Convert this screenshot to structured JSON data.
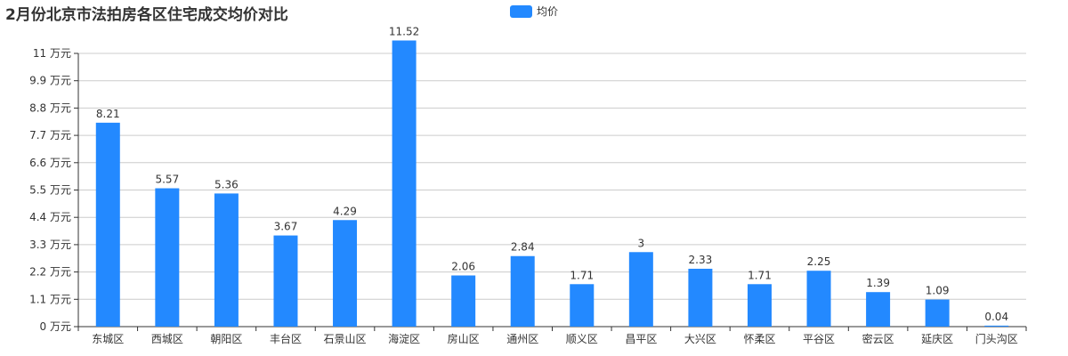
{
  "chart_data": {
    "type": "bar",
    "title": "2月份北京市法拍房各区住宅成交均价对比",
    "legend": {
      "position": "top-center",
      "entries": [
        "均价"
      ]
    },
    "series": [
      {
        "name": "均价",
        "color": "#2389ff",
        "values": [
          8.21,
          5.57,
          5.36,
          3.67,
          4.29,
          11.52,
          2.06,
          2.84,
          1.71,
          3,
          2.33,
          1.71,
          2.25,
          1.39,
          1.09,
          0.04
        ],
        "value_labels": [
          "8.21",
          "5.57",
          "5.36",
          "3.67",
          "4.29",
          "11.52",
          "2.06",
          "2.84",
          "1.71",
          "3",
          "2.33",
          "1.71",
          "2.25",
          "1.39",
          "1.09",
          "0.04"
        ]
      }
    ],
    "categories": [
      "东城区",
      "西城区",
      "朝阳区",
      "丰台区",
      "石景山区",
      "海淀区",
      "房山区",
      "通州区",
      "顺义区",
      "昌平区",
      "大兴区",
      "怀柔区",
      "平谷区",
      "密云区",
      "延庆区",
      "门头沟区"
    ],
    "ylim": [
      0,
      11
    ],
    "yticks": [
      0,
      1.1,
      2.2,
      3.3,
      4.4,
      5.5,
      6.6,
      7.7,
      8.8,
      9.9,
      11
    ],
    "ytick_labels": [
      "0 万元",
      "1.1 万元",
      "2.2 万元",
      "3.3 万元",
      "4.4 万元",
      "5.5 万元",
      "6.6 万元",
      "7.7 万元",
      "8.8 万元",
      "9.9 万元",
      "11 万元"
    ],
    "grid": true,
    "xlabel": "",
    "ylabel": ""
  }
}
